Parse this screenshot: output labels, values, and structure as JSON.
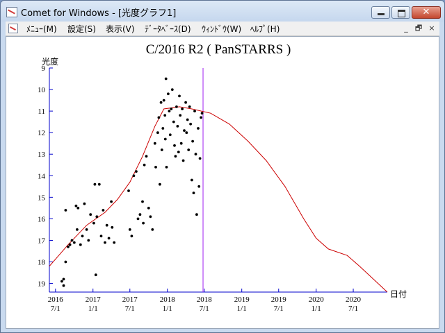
{
  "window": {
    "title": "Comet for Windows - [光度グラフ1]",
    "icon": "chart-app-icon",
    "controls": {
      "minimize": "minimize-icon",
      "maximize": "maximize-icon",
      "close": "✕"
    }
  },
  "menu": {
    "items": [
      "ﾒﾆｭｰ(M)",
      "設定(S)",
      "表示(V)",
      "ﾃﾞｰﾀﾍﾞｰｽ(D)",
      "ｳｨﾝﾄﾞｳ(W)",
      "ﾍﾙﾌﾟ(H)"
    ],
    "mdi_controls": [
      "_",
      "🗗",
      "×"
    ]
  },
  "chart_data": {
    "type": "scatter",
    "title": "C/2016 R2 ( PanSTARRS )",
    "ylabel": "光度",
    "xlabel": "日付",
    "ylim": [
      9,
      19.4
    ],
    "y_inverted": true,
    "yticks": [
      9,
      10,
      11,
      12,
      13,
      14,
      15,
      16,
      17,
      18,
      19
    ],
    "x_range": [
      "2016-06-01",
      "2020-12-15"
    ],
    "xticks": [
      {
        "date": "2016-07-01",
        "year": "2016",
        "md": "7/1"
      },
      {
        "date": "2017-01-01",
        "year": "2017",
        "md": "1/1"
      },
      {
        "date": "2017-07-01",
        "year": "2017",
        "md": "7/1"
      },
      {
        "date": "2018-01-01",
        "year": "2018",
        "md": "1/1"
      },
      {
        "date": "2018-07-01",
        "year": "2018",
        "md": "7/1"
      },
      {
        "date": "2019-01-01",
        "year": "2019",
        "md": "1/1"
      },
      {
        "date": "2019-07-01",
        "year": "2019",
        "md": "7/1"
      },
      {
        "date": "2020-01-01",
        "year": "2020",
        "md": "1/1"
      },
      {
        "date": "2020-07-01",
        "year": "2020",
        "md": "7/1"
      }
    ],
    "current_date": "2018-06-25",
    "colors": {
      "axis": "#0000cc",
      "curve": "#cc0000",
      "marker": "#a020f0",
      "points": "#000000"
    },
    "series": [
      {
        "type": "line",
        "points": [
          [
            "2016-06-01",
            18.2
          ],
          [
            "2016-09-01",
            17.2
          ],
          [
            "2016-12-01",
            16.3
          ],
          [
            "2017-03-01",
            15.7
          ],
          [
            "2017-05-01",
            15.1
          ],
          [
            "2017-07-01",
            14.3
          ],
          [
            "2017-09-01",
            13.1
          ],
          [
            "2017-11-01",
            11.7
          ],
          [
            "2017-12-15",
            10.9
          ],
          [
            "2018-03-01",
            10.8
          ],
          [
            "2018-05-01",
            10.9
          ],
          [
            "2018-08-01",
            11.1
          ],
          [
            "2018-11-01",
            11.6
          ],
          [
            "2019-02-01",
            12.4
          ],
          [
            "2019-05-01",
            13.3
          ],
          [
            "2019-08-01",
            14.5
          ],
          [
            "2019-11-01",
            16.0
          ],
          [
            "2020-01-01",
            16.9
          ],
          [
            "2020-03-01",
            17.4
          ],
          [
            "2020-06-01",
            17.7
          ],
          [
            "2020-08-01",
            18.2
          ],
          [
            "2020-12-15",
            19.5
          ]
        ]
      },
      {
        "type": "scatter",
        "points": [
          [
            "2016-08-01",
            18.9
          ],
          [
            "2016-08-10",
            18.8
          ],
          [
            "2016-08-20",
            18.0
          ],
          [
            "2016-08-10",
            19.1
          ],
          [
            "2016-08-20",
            15.6
          ],
          [
            "2016-09-01",
            17.3
          ],
          [
            "2016-09-10",
            17.2
          ],
          [
            "2016-09-20",
            17.0
          ],
          [
            "2016-10-01",
            17.1
          ],
          [
            "2016-10-15",
            16.5
          ],
          [
            "2016-10-10",
            15.4
          ],
          [
            "2016-10-20",
            15.5
          ],
          [
            "2016-11-01",
            17.2
          ],
          [
            "2016-11-10",
            16.8
          ],
          [
            "2016-11-20",
            15.3
          ],
          [
            "2016-12-01",
            16.5
          ],
          [
            "2016-12-10",
            17.0
          ],
          [
            "2016-12-20",
            15.8
          ],
          [
            "2017-01-05",
            16.2
          ],
          [
            "2017-01-10",
            14.4
          ],
          [
            "2017-01-15",
            18.6
          ],
          [
            "2017-01-20",
            15.9
          ],
          [
            "2017-02-01",
            14.4
          ],
          [
            "2017-02-10",
            16.8
          ],
          [
            "2017-02-20",
            15.6
          ],
          [
            "2017-03-01",
            17.1
          ],
          [
            "2017-03-10",
            16.3
          ],
          [
            "2017-03-20",
            16.9
          ],
          [
            "2017-04-01",
            15.2
          ],
          [
            "2017-04-05",
            16.4
          ],
          [
            "2017-04-15",
            17.1
          ],
          [
            "2017-06-25",
            14.7
          ],
          [
            "2017-07-01",
            16.5
          ],
          [
            "2017-07-10",
            16.8
          ],
          [
            "2017-07-20",
            14.0
          ],
          [
            "2017-08-01",
            13.8
          ],
          [
            "2017-08-10",
            16.0
          ],
          [
            "2017-08-20",
            15.8
          ],
          [
            "2017-09-01",
            15.2
          ],
          [
            "2017-09-05",
            16.2
          ],
          [
            "2017-09-10",
            13.5
          ],
          [
            "2017-09-20",
            13.1
          ],
          [
            "2017-10-01",
            15.5
          ],
          [
            "2017-10-10",
            15.9
          ],
          [
            "2017-10-20",
            16.5
          ],
          [
            "2017-11-01",
            12.5
          ],
          [
            "2017-11-05",
            13.6
          ],
          [
            "2017-11-15",
            12.0
          ],
          [
            "2017-11-20",
            11.3
          ],
          [
            "2017-11-25",
            14.4
          ],
          [
            "2017-12-01",
            10.6
          ],
          [
            "2017-12-05",
            12.8
          ],
          [
            "2017-12-10",
            11.8
          ],
          [
            "2017-12-15",
            10.5
          ],
          [
            "2017-12-20",
            11.2
          ],
          [
            "2017-12-22",
            12.3
          ],
          [
            "2017-12-25",
            9.5
          ],
          [
            "2017-12-28",
            13.6
          ],
          [
            "2018-01-05",
            10.2
          ],
          [
            "2018-01-10",
            11.0
          ],
          [
            "2018-01-15",
            12.1
          ],
          [
            "2018-01-20",
            10.9
          ],
          [
            "2018-01-25",
            10.0
          ],
          [
            "2018-02-01",
            11.5
          ],
          [
            "2018-02-05",
            12.6
          ],
          [
            "2018-02-10",
            13.1
          ],
          [
            "2018-02-15",
            10.8
          ],
          [
            "2018-02-20",
            11.7
          ],
          [
            "2018-02-25",
            12.9
          ],
          [
            "2018-03-01",
            10.3
          ],
          [
            "2018-03-05",
            11.2
          ],
          [
            "2018-03-10",
            12.5
          ],
          [
            "2018-03-15",
            10.9
          ],
          [
            "2018-03-20",
            13.3
          ],
          [
            "2018-03-25",
            11.9
          ],
          [
            "2018-04-01",
            10.6
          ],
          [
            "2018-04-05",
            12.0
          ],
          [
            "2018-04-10",
            11.4
          ],
          [
            "2018-04-15",
            12.8
          ],
          [
            "2018-04-20",
            10.8
          ],
          [
            "2018-04-25",
            11.6
          ],
          [
            "2018-05-01",
            14.2
          ],
          [
            "2018-05-05",
            12.4
          ],
          [
            "2018-05-10",
            14.8
          ],
          [
            "2018-05-15",
            11.0
          ],
          [
            "2018-05-20",
            13.0
          ],
          [
            "2018-05-25",
            15.8
          ],
          [
            "2018-06-01",
            11.8
          ],
          [
            "2018-06-05",
            14.5
          ],
          [
            "2018-06-10",
            13.2
          ],
          [
            "2018-06-15",
            11.3
          ],
          [
            "2018-06-20",
            11.1
          ]
        ]
      }
    ]
  }
}
